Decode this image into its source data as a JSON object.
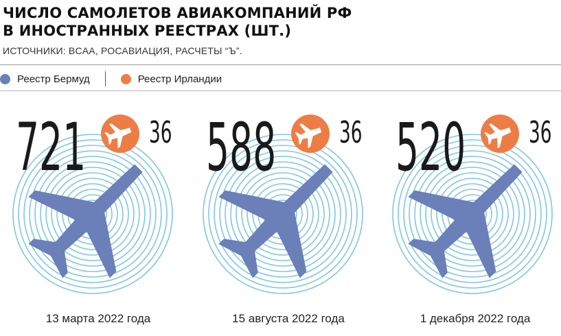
{
  "header": {
    "title_line1": "ЧИСЛО САМОЛЕТОВ АВИАКОМПАНИЙ РФ",
    "title_line2": "В ИНОСТРАННЫХ РЕЕСТРАХ (ШТ.)",
    "subtitle": "ИСТОЧНИКИ: BCAA, РОСАВИАЦИЯ, РАСЧЕТЫ “Ъ”."
  },
  "colors": {
    "bermuda": "#6b7fb8",
    "ireland": "#ee7d45",
    "rings": "#7fc6e6",
    "text": "#1a1a1a"
  },
  "icons": {
    "bermuda": "airplane-icon",
    "ireland": "airplane-icon",
    "rings": "concentric-rings"
  },
  "chart_data": {
    "type": "pictorial",
    "legend_position": "top-left",
    "categories": [
      "13 марта 2022 года",
      "15 августа 2022 года",
      "1 декабря 2022 года"
    ],
    "series": [
      {
        "name": "Реестр Бермуд",
        "values": [
          721,
          588,
          520
        ]
      },
      {
        "name": "Реестр Ирландии",
        "values": [
          36,
          36,
          36
        ]
      }
    ]
  }
}
